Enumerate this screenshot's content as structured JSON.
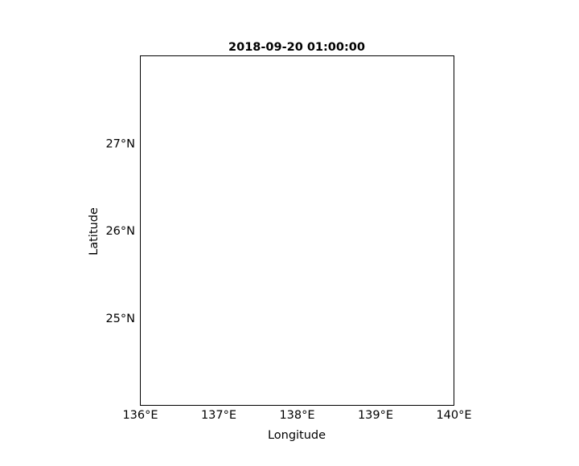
{
  "chart_data": {
    "type": "map",
    "title": "2018-09-20 01:00:00",
    "xlabel": "Longitude",
    "ylabel": "Latitude",
    "xlim": [
      136,
      140
    ],
    "ylim": [
      24,
      28
    ],
    "x_ticks": [
      136,
      137,
      138,
      139,
      140
    ],
    "x_tick_labels": [
      "136°E",
      "137°E",
      "138°E",
      "139°E",
      "140°E"
    ],
    "y_ticks": [
      25,
      26,
      27
    ],
    "y_tick_labels": [
      "25°N",
      "26°N",
      "27°N"
    ],
    "grid": false,
    "series": []
  }
}
